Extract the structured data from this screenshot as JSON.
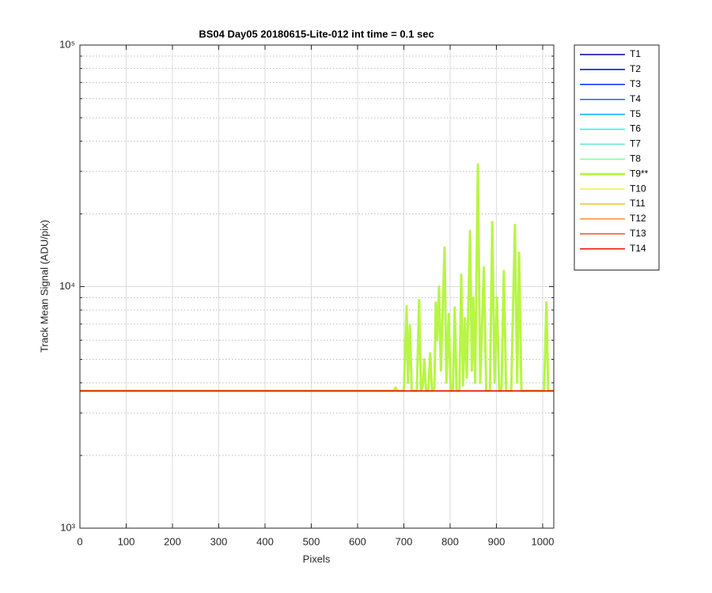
{
  "chart_data": {
    "type": "line",
    "title": "BS04 Day05 20180615-Lite-012 int time = 0.1 sec",
    "xlabel": "Pixels",
    "ylabel": "Track Mean Signal (ADU/pix)",
    "xlim": [
      0,
      1024
    ],
    "xticks": [
      0,
      100,
      200,
      300,
      400,
      500,
      600,
      700,
      800,
      900,
      1000
    ],
    "ylim": [
      1000,
      100000
    ],
    "ylog": true,
    "yticks": [
      {
        "value": 1000,
        "label": "10³"
      },
      {
        "value": 10000,
        "label": "10⁴"
      },
      {
        "value": 100000,
        "label": "10⁵"
      }
    ],
    "yminorticks": [
      2000,
      3000,
      4000,
      5000,
      6000,
      7000,
      8000,
      9000,
      20000,
      30000,
      40000,
      50000,
      60000,
      70000,
      80000,
      90000
    ],
    "grid": true,
    "legend": "outside-right",
    "series": [
      {
        "name": "T1",
        "color": "#00009f",
        "x": [
          1,
          1024
        ],
        "values": [
          3700,
          3700
        ]
      },
      {
        "name": "T2",
        "color": "#0000df",
        "x": [
          1,
          1024
        ],
        "values": [
          3700,
          3700
        ]
      },
      {
        "name": "T3",
        "color": "#0030ff",
        "x": [
          1,
          1024
        ],
        "values": [
          3700,
          3700
        ]
      },
      {
        "name": "T4",
        "color": "#0070ff",
        "x": [
          1,
          1024
        ],
        "values": [
          3700,
          3700
        ]
      },
      {
        "name": "T5",
        "color": "#00afff",
        "x": [
          1,
          1024
        ],
        "values": [
          3700,
          3700
        ]
      },
      {
        "name": "T6",
        "color": "#20efef",
        "x": [
          1,
          1024
        ],
        "values": [
          3700,
          3700
        ]
      },
      {
        "name": "T7",
        "color": "#60e8c8",
        "x": [
          1,
          1024
        ],
        "values": [
          3700,
          3700
        ]
      },
      {
        "name": "T8",
        "color": "#80ffa0",
        "x": [
          1,
          1024
        ],
        "values": [
          3700,
          3700
        ]
      },
      {
        "name": "T9**",
        "color": "#b8f545",
        "width": 3,
        "x": [
          1,
          678,
          682,
          686,
          700,
          706,
          709,
          713,
          717,
          728,
          733,
          737,
          741,
          744,
          748,
          753,
          757,
          761,
          766,
          769,
          772,
          776,
          780,
          788,
          792,
          797,
          801,
          806,
          810,
          814,
          820,
          824,
          828,
          832,
          836,
          843,
          847,
          850,
          854,
          860,
          865,
          868,
          873,
          878,
          886,
          891,
          896,
          901,
          906,
          911,
          916,
          921,
          932,
          940,
          945,
          949,
          954,
          1003,
          1008,
          1012,
          1024
        ],
        "values": [
          3700,
          3700,
          3820,
          3700,
          3700,
          8300,
          4000,
          6900,
          3700,
          3700,
          8800,
          3700,
          3900,
          5000,
          3700,
          3700,
          5300,
          3700,
          3800,
          8600,
          6000,
          10000,
          4500,
          14500,
          4000,
          7700,
          3700,
          3700,
          8200,
          3700,
          3700,
          11200,
          3900,
          7400,
          4200,
          17000,
          4500,
          9000,
          4000,
          32000,
          4000,
          6000,
          12000,
          3700,
          3700,
          18500,
          4000,
          9000,
          3700,
          3700,
          11600,
          3700,
          3700,
          18000,
          4000,
          13800,
          3700,
          3700,
          8600,
          3700,
          3700
        ]
      },
      {
        "name": "T10",
        "color": "#f0f040",
        "x": [
          1,
          1024
        ],
        "values": [
          3700,
          3700
        ]
      },
      {
        "name": "T11",
        "color": "#f0c020",
        "x": [
          1,
          1024
        ],
        "values": [
          3700,
          3700
        ]
      },
      {
        "name": "T12",
        "color": "#ff9020",
        "x": [
          1,
          1024
        ],
        "values": [
          3700,
          3700
        ]
      },
      {
        "name": "T13",
        "color": "#ff5020",
        "x": [
          1,
          1024
        ],
        "values": [
          3700,
          3700
        ]
      },
      {
        "name": "T14",
        "color": "#ee1100",
        "x": [
          1,
          1024
        ],
        "values": [
          3700,
          3700
        ]
      }
    ]
  }
}
